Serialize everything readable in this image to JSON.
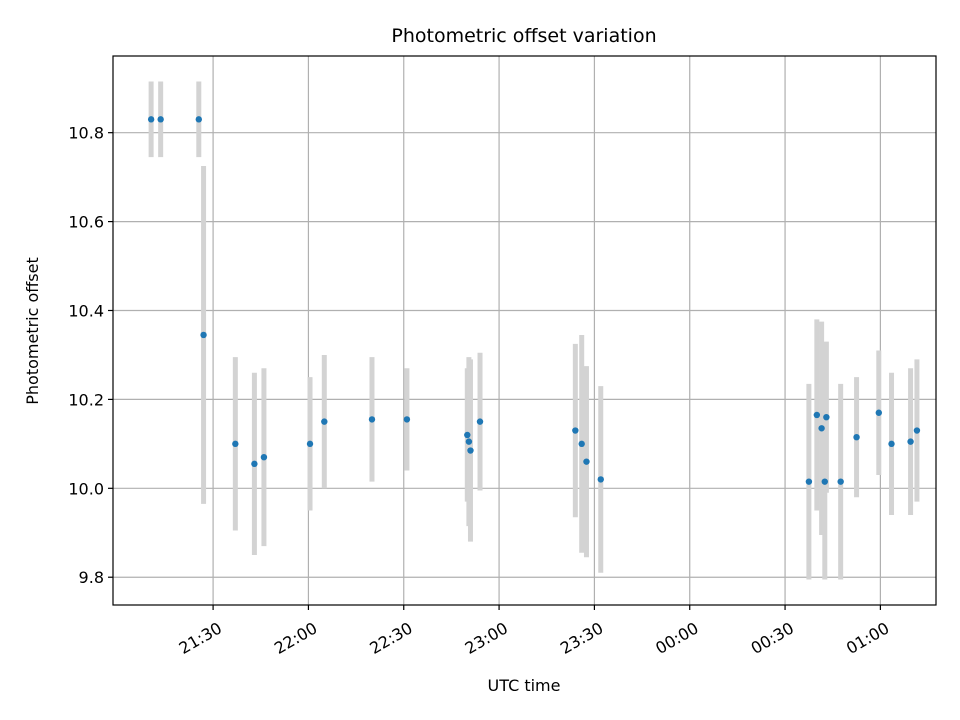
{
  "chart_data": {
    "type": "scatter",
    "title": "Photometric offset variation",
    "xlabel": "UTC time",
    "ylabel": "Photometric offset",
    "x_tick_labels": [
      "21:30",
      "22:00",
      "22:30",
      "23:00",
      "23:30",
      "00:00",
      "00:30",
      "01:00"
    ],
    "y_tick_labels": [
      "9.8",
      "10.0",
      "10.2",
      "10.4",
      "10.6",
      "10.8"
    ],
    "x_ticks_minutes": [
      90,
      120,
      150,
      180,
      210,
      240,
      270,
      300
    ],
    "y_ticks": [
      9.8,
      10.0,
      10.2,
      10.4,
      10.6,
      10.8
    ],
    "xlim_minutes": [
      58.5,
      317.5
    ],
    "ylim": [
      9.7375,
      10.9725
    ],
    "x_axis_note": "minutes after 20:00 UTC",
    "grid": true,
    "marker_color": "#1f77b4",
    "errorbar_color": "#d3d3d3",
    "points": [
      {
        "x": 70.5,
        "y": 10.83,
        "err": 0.085
      },
      {
        "x": 73.5,
        "y": 10.83,
        "err": 0.085
      },
      {
        "x": 85.5,
        "y": 10.83,
        "err": 0.085
      },
      {
        "x": 87.0,
        "y": 10.345,
        "err": 0.38
      },
      {
        "x": 97.0,
        "y": 10.1,
        "err": 0.195
      },
      {
        "x": 103.0,
        "y": 10.055,
        "err": 0.205
      },
      {
        "x": 106.0,
        "y": 10.07,
        "err": 0.2
      },
      {
        "x": 120.5,
        "y": 10.1,
        "err": 0.15
      },
      {
        "x": 125.0,
        "y": 10.15,
        "err": 0.15
      },
      {
        "x": 140.0,
        "y": 10.155,
        "err": 0.14
      },
      {
        "x": 151.0,
        "y": 10.155,
        "err": 0.115
      },
      {
        "x": 170.0,
        "y": 10.12,
        "err": 0.15
      },
      {
        "x": 170.5,
        "y": 10.105,
        "err": 0.19
      },
      {
        "x": 171.0,
        "y": 10.085,
        "err": 0.205
      },
      {
        "x": 174.0,
        "y": 10.15,
        "err": 0.155
      },
      {
        "x": 204.0,
        "y": 10.13,
        "err": 0.195
      },
      {
        "x": 206.0,
        "y": 10.1,
        "err": 0.245
      },
      {
        "x": 207.5,
        "y": 10.06,
        "err": 0.215
      },
      {
        "x": 212.0,
        "y": 10.02,
        "err": 0.21
      },
      {
        "x": 277.5,
        "y": 10.015,
        "err": 0.22
      },
      {
        "x": 282.5,
        "y": 10.015,
        "err": 0.22
      },
      {
        "x": 287.5,
        "y": 10.015,
        "err": 0.22
      },
      {
        "x": 280.0,
        "y": 10.165,
        "err": 0.215
      },
      {
        "x": 281.5,
        "y": 10.135,
        "err": 0.24
      },
      {
        "x": 283.0,
        "y": 10.16,
        "err": 0.17
      },
      {
        "x": 292.5,
        "y": 10.115,
        "err": 0.135
      },
      {
        "x": 299.5,
        "y": 10.17,
        "err": 0.14
      },
      {
        "x": 303.5,
        "y": 10.1,
        "err": 0.16
      },
      {
        "x": 309.5,
        "y": 10.105,
        "err": 0.165
      },
      {
        "x": 311.5,
        "y": 10.13,
        "err": 0.16
      }
    ]
  }
}
